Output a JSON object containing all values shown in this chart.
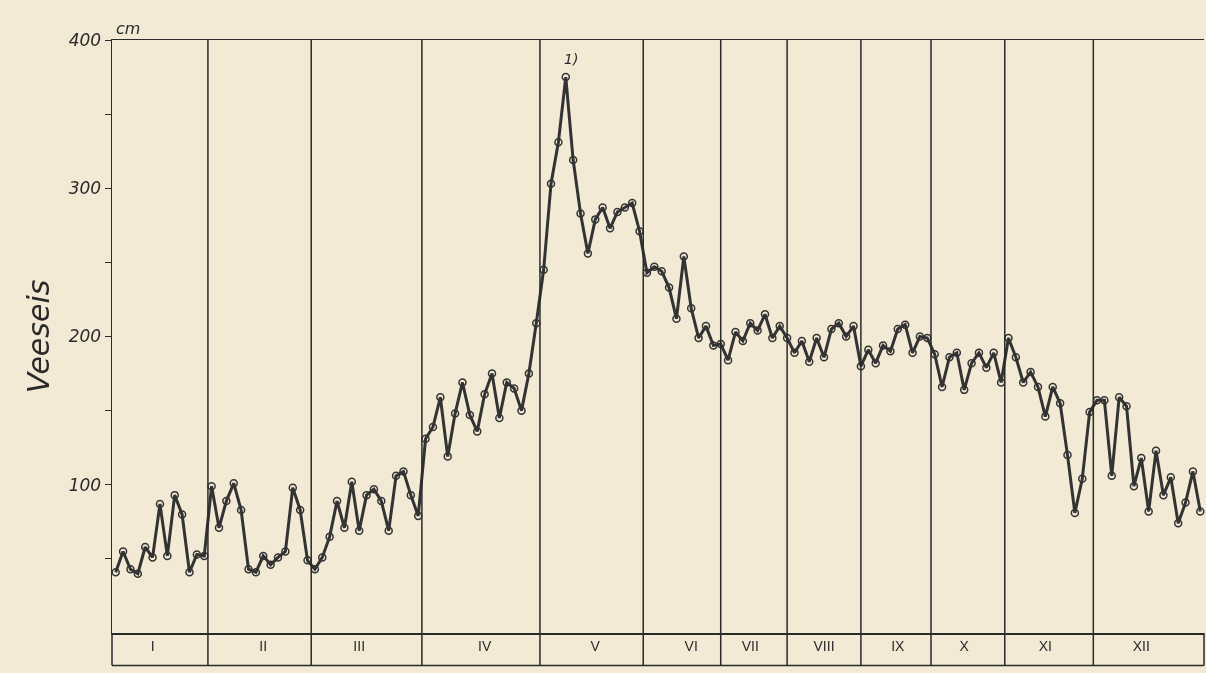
{
  "chart_data": {
    "type": "line",
    "ylabel": "Veeseis",
    "annotations": [
      "cm",
      "1)"
    ],
    "categories": [
      null,
      null,
      null,
      null,
      null,
      "I",
      null,
      null,
      null,
      null,
      null,
      null,
      null,
      null,
      null,
      null,
      null,
      null,
      null,
      null,
      "II",
      null,
      null,
      null,
      null,
      null,
      null,
      null,
      null,
      null,
      null,
      null,
      null,
      "III",
      null,
      null,
      null,
      null,
      null,
      null,
      null,
      null,
      null,
      null,
      null,
      null,
      null,
      null,
      null,
      null,
      "IV",
      null,
      null,
      null,
      null,
      null,
      null,
      null,
      null,
      null,
      null,
      null,
      null,
      null,
      null,
      "V",
      null,
      null,
      null,
      null,
      null,
      null,
      null,
      null,
      null,
      null,
      null,
      null,
      "VI",
      null,
      null,
      null,
      null,
      null,
      null,
      null,
      "VII",
      null,
      null,
      null,
      null,
      null,
      null,
      null,
      null,
      null,
      "VIII",
      null,
      null,
      null,
      null,
      null,
      null,
      null,
      null,
      null,
      "IX",
      null,
      null,
      null,
      null,
      null,
      null,
      null,
      null,
      "X",
      null,
      null,
      null,
      null,
      null,
      null,
      null,
      null,
      null,
      null,
      "XI",
      null,
      null,
      null,
      null,
      null,
      null,
      null,
      null,
      null,
      null,
      null,
      null,
      "XII",
      null,
      null,
      null,
      null,
      null,
      null,
      null,
      null
    ],
    "series": [
      {
        "color": "#333333",
        "values": [
          41,
          55,
          43,
          40,
          58,
          51,
          87,
          52,
          93,
          80,
          41,
          53,
          52,
          99,
          71,
          89,
          101,
          83,
          43,
          41,
          52,
          46,
          51,
          55,
          98,
          83,
          49,
          43,
          51,
          65,
          89,
          71,
          102,
          69,
          93,
          97,
          89,
          69,
          106,
          109,
          93,
          79,
          131,
          139,
          159,
          119,
          148,
          169,
          147,
          136,
          161,
          175,
          145,
          169,
          165,
          150,
          175,
          209,
          245,
          303,
          331,
          375,
          319,
          283,
          256,
          279,
          287,
          273,
          284,
          287,
          290,
          271,
          243,
          247,
          244,
          233,
          212,
          254,
          219,
          199,
          207,
          194,
          195,
          184,
          203,
          197,
          209,
          204,
          215,
          199,
          207,
          199,
          189,
          197,
          183,
          199,
          186,
          205,
          209,
          200,
          207,
          180,
          191,
          182,
          194,
          190,
          205,
          208,
          189,
          200,
          199,
          188,
          166,
          186,
          189,
          164,
          182,
          189,
          179,
          189,
          169,
          199,
          186,
          169,
          176,
          166,
          146,
          166,
          155,
          120,
          81,
          104,
          149,
          157,
          157,
          106,
          159,
          153,
          99,
          118,
          82,
          123,
          93,
          105,
          74,
          88,
          109,
          82
        ]
      }
    ],
    "ylim": [
      0,
      400
    ],
    "yticks": [
      {
        "value": 50,
        "label": null
      },
      100,
      {
        "value": 150,
        "label": null
      },
      200,
      {
        "value": 250,
        "label": null
      },
      300,
      {
        "value": 350,
        "label": null
      },
      400
    ],
    "grid": "x",
    "marker": "circle",
    "line_style": "solid"
  }
}
